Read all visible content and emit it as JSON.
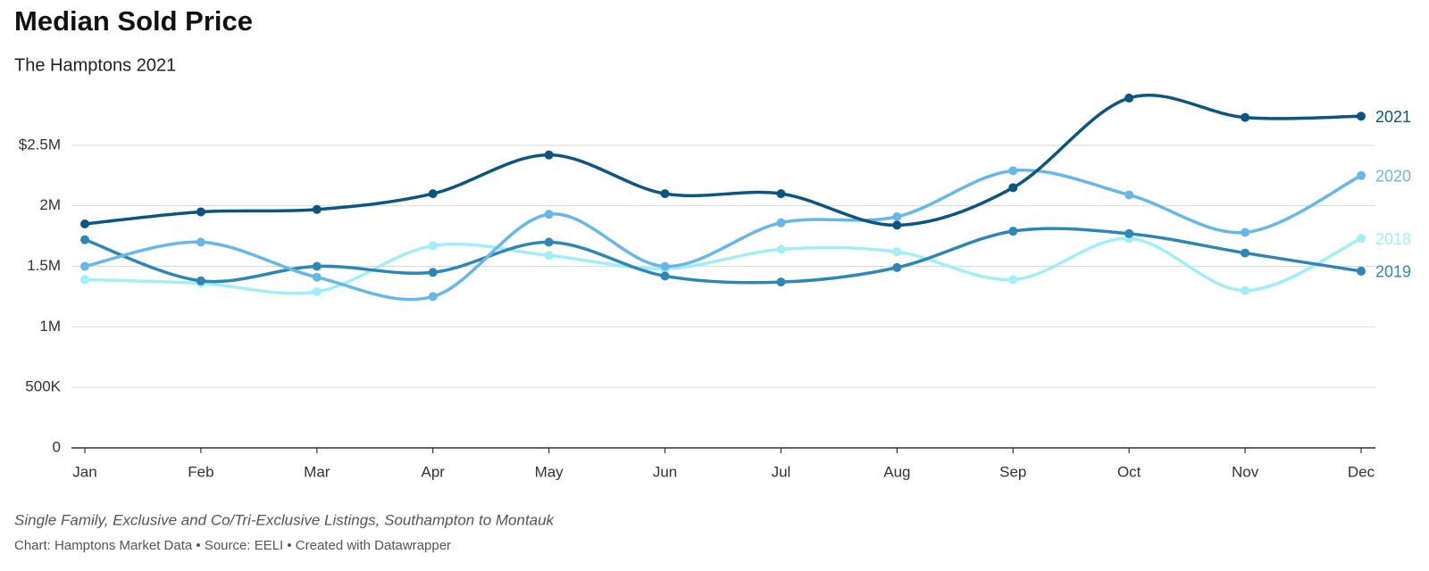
{
  "chart_data": {
    "type": "line",
    "title": "Median Sold Price",
    "subtitle": "The Hamptons 2021",
    "notes": "Single Family, Exclusive and Co/Tri-Exclusive Listings, Southampton to Montauk",
    "source": "Chart: Hamptons Market Data • Source: EELI • Created with Datawrapper",
    "categories": [
      "Jan",
      "Feb",
      "Mar",
      "Apr",
      "May",
      "Jun",
      "Jul",
      "Aug",
      "Sep",
      "Oct",
      "Nov",
      "Dec"
    ],
    "series": [
      {
        "name": "2021",
        "color": "#0b5583",
        "values": [
          1850000,
          1950000,
          1970000,
          2100000,
          2420000,
          2100000,
          2100000,
          1840000,
          2150000,
          2890000,
          2730000,
          2740000
        ]
      },
      {
        "name": "2020",
        "color": "#67b8ea",
        "values": [
          1500000,
          1700000,
          1410000,
          1250000,
          1930000,
          1500000,
          1860000,
          1910000,
          2290000,
          2090000,
          1780000,
          2250000
        ]
      },
      {
        "name": "2018",
        "color": "#a0eef8",
        "values": [
          1390000,
          1360000,
          1290000,
          1670000,
          1590000,
          1480000,
          1640000,
          1620000,
          1390000,
          1730000,
          1300000,
          1730000
        ]
      },
      {
        "name": "2019",
        "color": "#2c87b8",
        "values": [
          1720000,
          1380000,
          1500000,
          1450000,
          1700000,
          1420000,
          1370000,
          1490000,
          1790000,
          1770000,
          1610000,
          1460000
        ]
      }
    ],
    "ylim": [
      0,
      3000000
    ],
    "yticks": [
      0,
      {
        "value": 500000,
        "label": "500K"
      },
      {
        "value": 1000000,
        "label": "1M"
      },
      {
        "value": 1500000,
        "label": "1.5M"
      },
      {
        "value": 2000000,
        "label": "2M"
      },
      {
        "value": 2500000,
        "label": "$2.5M"
      }
    ],
    "grid": true
  }
}
